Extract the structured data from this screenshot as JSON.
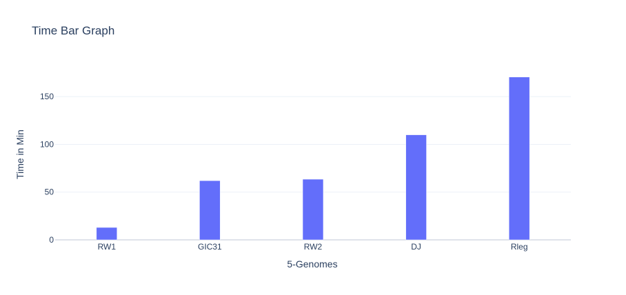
{
  "chart_data": {
    "type": "bar",
    "title": "Time Bar Graph",
    "xlabel": "5-Genomes",
    "ylabel": "Time in Min",
    "categories": [
      "RW1",
      "GIC31",
      "RW2",
      "DJ",
      "Rleg"
    ],
    "values": [
      13,
      62,
      63.5,
      110,
      170.5
    ],
    "ylim": [
      0,
      179
    ],
    "yticks": [
      0,
      50,
      100,
      150
    ],
    "ytick_labels": [
      "0",
      "50",
      "100",
      "150"
    ],
    "grid": true,
    "legend": "none",
    "colors": {
      "bar": "#636efa",
      "grid": "#ebf0f8",
      "axis_line": "#dfe3ea",
      "text": "#2a3f5f",
      "background": "#ffffff"
    }
  }
}
